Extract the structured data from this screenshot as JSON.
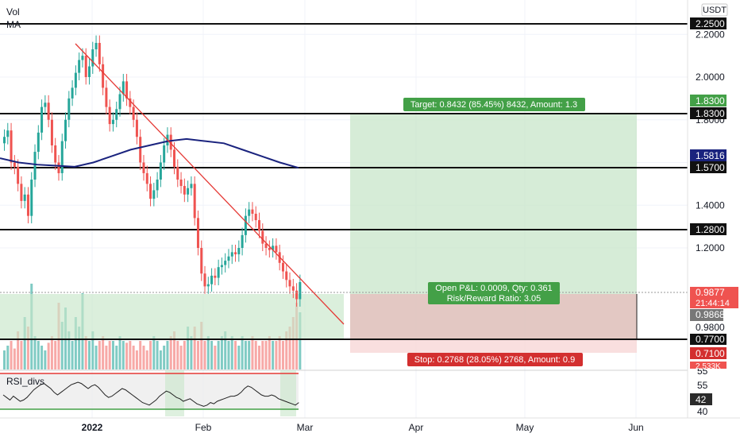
{
  "legend": {
    "vol": "Vol",
    "ma": "MA",
    "rsi": "RSI_divs"
  },
  "currency": "USDT",
  "chart_data": {
    "type": "candlestick",
    "price_range": [
      1.02,
      2.31
    ],
    "price_ticks": [
      "2.2000",
      "2.0000",
      "1.8000",
      "1.6000",
      "1.4000",
      "1.2000"
    ],
    "horizontal_levels": [
      {
        "label": "2.2500",
        "value": 2.25
      },
      {
        "label": "1.8300",
        "value": 1.83
      },
      {
        "label": "1.5700",
        "value": 1.57
      },
      {
        "label": "1.2800",
        "value": 1.28
      },
      {
        "label": "0.7700",
        "value": 0.77
      }
    ],
    "price_close": [
      1.72,
      1.75,
      1.6,
      1.58,
      1.5,
      1.42,
      1.45,
      1.35,
      1.52,
      1.65,
      1.74,
      1.86,
      1.88,
      1.8,
      1.68,
      1.6,
      1.55,
      1.7,
      1.8,
      1.9,
      1.95,
      2.02,
      2.08,
      2.1,
      2.0,
      2.05,
      2.13,
      2.16,
      2.06,
      1.95,
      1.86,
      1.78,
      1.8,
      1.85,
      1.92,
      1.98,
      1.9,
      1.86,
      1.8,
      1.72,
      1.6,
      1.55,
      1.5,
      1.43,
      1.47,
      1.52,
      1.6,
      1.68,
      1.73,
      1.66,
      1.58,
      1.52,
      1.49,
      1.45,
      1.48,
      1.5,
      1.34,
      1.2,
      1.08,
      1.02,
      1.03,
      1.07,
      1.06,
      1.11,
      1.12,
      1.14,
      1.16,
      1.18,
      1.17,
      1.2,
      1.26,
      1.35,
      1.38,
      1.36,
      1.33,
      1.28,
      1.22,
      1.2,
      1.19,
      1.21,
      1.18,
      1.13,
      1.09,
      1.05,
      1.02,
      1.0,
      0.96,
      1.04
    ],
    "price_colors": {
      "up": "#26a69a",
      "down": "#ef5350",
      "ma": "#1a237e",
      "trendline": "#e53935"
    },
    "ma_values": [
      1.62,
      1.6,
      1.59,
      1.585,
      1.58,
      1.6,
      1.63,
      1.66,
      1.68,
      1.7,
      1.71,
      1.7,
      1.69,
      1.66,
      1.63,
      1.6,
      1.575
    ],
    "volume": [
      0.2,
      0.25,
      0.3,
      0.22,
      0.4,
      0.3,
      0.55,
      0.45,
      0.9,
      0.35,
      0.3,
      0.25,
      0.2,
      0.28,
      0.35,
      0.3,
      0.7,
      0.5,
      0.65,
      0.4,
      0.3,
      0.55,
      0.45,
      0.8,
      0.35,
      0.3,
      0.4,
      0.25,
      0.3,
      0.35,
      0.25,
      0.3,
      0.3,
      0.25,
      0.35,
      0.3,
      0.28,
      0.3,
      0.25,
      0.2,
      0.3,
      0.25,
      0.2,
      0.3,
      0.35,
      0.3,
      0.2,
      0.25,
      0.3,
      0.35,
      0.4,
      0.3,
      0.25,
      0.3,
      0.45,
      0.35,
      0.45,
      0.3,
      0.5,
      0.3,
      0.35,
      0.3,
      0.25,
      0.3,
      0.35,
      0.4,
      0.3,
      0.35,
      0.3,
      0.25,
      0.35,
      0.3,
      0.3,
      0.35,
      0.3,
      0.25,
      0.3,
      0.3,
      0.35,
      0.3,
      0.3,
      0.35,
      0.3,
      0.4,
      0.45,
      0.55,
      0.7,
      0.6
    ],
    "rsi_ticks": [
      "55",
      "55",
      "40"
    ],
    "rsi_values": [
      48,
      46,
      44,
      47,
      45,
      43,
      44,
      46,
      49,
      52,
      54,
      56,
      57,
      55,
      53,
      50,
      48,
      50,
      52,
      54,
      56,
      57,
      58,
      57,
      55,
      53,
      55,
      56,
      54,
      51,
      48,
      46,
      47,
      49,
      51,
      53,
      52,
      50,
      48,
      46,
      44,
      42,
      41,
      40,
      42,
      44,
      47,
      49,
      51,
      50,
      48,
      46,
      45,
      43,
      44,
      45,
      43,
      41,
      40,
      39,
      40,
      42,
      41,
      43,
      44,
      45,
      46,
      47,
      47,
      48,
      50,
      53,
      55,
      54,
      52,
      50,
      48,
      47,
      47,
      48,
      47,
      45,
      44,
      43,
      42,
      41,
      40,
      42
    ],
    "x_ticks": [
      "2022",
      "Feb",
      "Mar",
      "Apr",
      "May",
      "Jun"
    ],
    "grid": true
  },
  "position": {
    "entry_label": "0.9877",
    "countdown": "21:44:14",
    "secondary_price": "0.9868",
    "level_0980": "0.9800",
    "target_price": "1.8300",
    "stop_price": "0.7100",
    "ma_label": "1.5816",
    "target_text": "Target: 0.8432 (85.45%) 8432, Amount: 1.3",
    "stop_text": "Stop: 0.2768 (28.05%) 2768, Amount: 0.9",
    "pnl_text": "Open P&L: 0.0009, Qty: 0.361",
    "rr_text": "Risk/Reward Ratio: 3.05",
    "volume_tag": "2.533K",
    "rsi_current": "42"
  }
}
